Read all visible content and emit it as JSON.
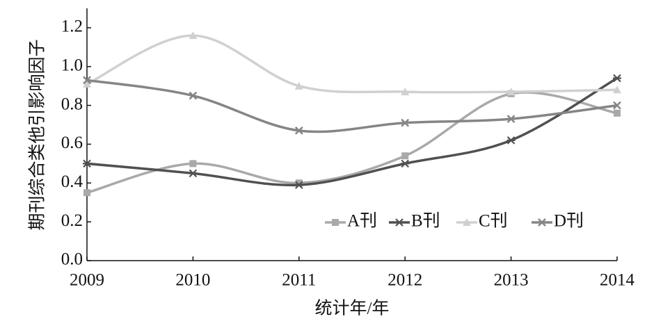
{
  "chart_data": {
    "type": "line",
    "smooth": true,
    "x_label": "统计年/年",
    "y_label": "期刊综合类他引影响因子",
    "x": [
      2009,
      2010,
      2011,
      2012,
      2013,
      2014
    ],
    "xlim": [
      2009,
      2014
    ],
    "xticks": [
      2009,
      2010,
      2011,
      2012,
      2013,
      2014
    ],
    "ylim": [
      0,
      1.3
    ],
    "yticks": [
      {
        "value": 0,
        "label": "0.0"
      },
      0.2,
      0.4,
      0.6,
      0.8,
      {
        "value": 1,
        "label": "1.0"
      },
      1.2
    ],
    "grid": false,
    "legend": "lower right",
    "series": [
      {
        "name": "A刊",
        "color": "#a9a9a9",
        "marker": "square",
        "values": [
          0.35,
          0.5,
          0.4,
          0.54,
          0.86,
          0.76
        ]
      },
      {
        "name": "B刊",
        "color": "#505050",
        "marker": "star",
        "values": [
          0.5,
          0.45,
          0.39,
          0.5,
          0.62,
          0.94
        ]
      },
      {
        "name": "C刊",
        "color": "#d0d0d0",
        "marker": "triangle",
        "values": [
          0.91,
          1.16,
          0.9,
          0.87,
          0.87,
          0.88
        ]
      },
      {
        "name": "D刊",
        "color": "#858585",
        "marker": "x",
        "values": [
          0.93,
          0.85,
          0.67,
          0.71,
          0.73,
          0.8
        ]
      }
    ]
  }
}
